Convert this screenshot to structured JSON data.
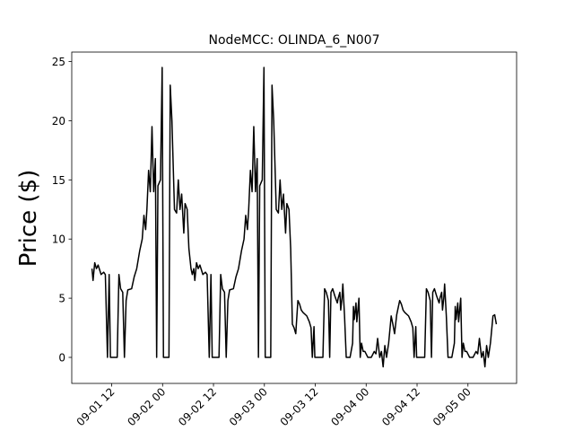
{
  "chart_data": {
    "type": "line",
    "title": "NodeMCC: OLINDA_6_N007",
    "y_label": "Price ($)",
    "xlim": [
      2.58,
      107.47
    ],
    "ylim": [
      -2.2,
      25.8
    ],
    "xticks": [
      {
        "value": 12,
        "label": "09-01 12"
      },
      {
        "value": 24,
        "label": "09-02 00"
      },
      {
        "value": 36,
        "label": "09-02 12"
      },
      {
        "value": 48,
        "label": "09-03 00"
      },
      {
        "value": 60,
        "label": "09-03 12"
      },
      {
        "value": 72,
        "label": "09-04 00"
      },
      {
        "value": 84,
        "label": "09-04 12"
      },
      {
        "value": 96,
        "label": "09-05 00"
      }
    ],
    "yticks": [
      0,
      5,
      10,
      15,
      20,
      25
    ],
    "grid": false,
    "x": [
      7.35,
      7.6,
      8.0,
      8.4,
      8.8,
      9.5,
      10.1,
      10.5,
      11.0,
      11.4,
      11.7,
      13.3,
      13.7,
      14.1,
      14.6,
      15.0,
      15.4,
      15.8,
      16.7,
      17.3,
      17.9,
      18.6,
      19.2,
      19.6,
      20.0,
      20.3,
      20.7,
      21.1,
      21.5,
      21.9,
      22.3,
      22.6,
      22.9,
      23.5,
      23.9,
      24.2,
      25.5,
      25.8,
      26.2,
      26.8,
      27.3,
      27.7,
      28.1,
      28.5,
      29.0,
      29.3,
      29.8,
      30.2,
      30.7,
      31.0,
      31.35,
      31.6,
      32.0,
      32.4,
      32.8,
      33.5,
      34.1,
      34.5,
      35.0,
      35.4,
      35.7,
      37.3,
      37.7,
      38.1,
      38.6,
      39.0,
      39.4,
      39.8,
      40.7,
      41.3,
      41.9,
      42.6,
      43.2,
      43.6,
      44.0,
      44.3,
      44.7,
      45.1,
      45.5,
      45.9,
      46.3,
      46.6,
      46.9,
      47.5,
      47.9,
      48.2,
      49.5,
      49.8,
      50.2,
      50.8,
      51.3,
      51.7,
      52.1,
      52.5,
      53.0,
      53.3,
      53.8,
      54.2,
      54.6,
      55.0,
      55.4,
      55.9,
      56.3,
      56.7,
      57.1,
      58.0,
      58.6,
      59.0,
      59.3,
      59.7,
      59.9,
      61.8,
      62.2,
      62.6,
      63.1,
      63.4,
      63.7,
      64.1,
      64.6,
      65.2,
      65.4,
      65.8,
      66.0,
      66.3,
      66.5,
      66.9,
      67.3,
      68.2,
      68.8,
      69.0,
      69.2,
      69.6,
      69.8,
      70.3,
      70.6,
      70.9,
      71.3,
      71.7,
      72.4,
      73.2,
      73.9,
      74.3,
      74.7,
      75.2,
      75.6,
      76.0,
      76.4,
      76.8,
      77.3,
      77.9,
      78.3,
      78.7,
      79.2,
      79.9,
      80.3,
      80.7,
      81.1,
      82.0,
      82.6,
      83.0,
      83.3,
      83.7,
      83.9,
      85.8,
      86.2,
      86.6,
      87.1,
      87.4,
      87.7,
      88.1,
      88.6,
      89.2,
      89.4,
      89.8,
      90.0,
      90.3,
      90.5,
      90.9,
      91.3,
      92.2,
      92.8,
      93.0,
      93.2,
      93.6,
      93.8,
      94.3,
      94.6,
      94.9,
      95.3,
      95.7,
      96.4,
      97.2,
      97.9,
      98.3,
      98.7,
      99.2,
      99.6,
      100.0,
      100.4,
      100.8,
      101.3,
      101.9,
      102.3,
      102.7
    ],
    "series": [
      {
        "name": "NodeMCC",
        "color": "#000000",
        "values": [
          7.5,
          6.5,
          8,
          7.5,
          7.8,
          7,
          7.2,
          7,
          0,
          7,
          0,
          0,
          7,
          5.8,
          5.5,
          0,
          4.8,
          5.7,
          5.8,
          6.8,
          7.5,
          9,
          10,
          12,
          10.8,
          12.5,
          15.8,
          14,
          19.5,
          14,
          16.8,
          0,
          14.5,
          15,
          24.5,
          0,
          0,
          23,
          20,
          12.5,
          12.2,
          15,
          12.5,
          13.8,
          10.5,
          13,
          12.5,
          9.2,
          7.5,
          7,
          7.5,
          6.5,
          8,
          7.5,
          7.8,
          7,
          7.2,
          7,
          0,
          7,
          0,
          0,
          7,
          5.8,
          5.5,
          0,
          4.8,
          5.7,
          5.8,
          6.8,
          7.5,
          9,
          10,
          12,
          10.8,
          12.5,
          15.8,
          14,
          19.5,
          14,
          16.8,
          0,
          14.5,
          15,
          24.5,
          0,
          0,
          23,
          20,
          12.5,
          12.2,
          15,
          12.5,
          13.8,
          10.5,
          13,
          12.5,
          9.2,
          2.8,
          2.5,
          2.0,
          4.8,
          4.5,
          4.0,
          3.8,
          3.5,
          3.0,
          2.5,
          0,
          2.6,
          0,
          0,
          5.8,
          5.5,
          4.8,
          0,
          5.5,
          5.8,
          5.2,
          4.6,
          5,
          5.5,
          4,
          5,
          6.2,
          3.5,
          0,
          0,
          1.2,
          4.3,
          3.2,
          4.6,
          3.0,
          5.0,
          0,
          1.2,
          0.5,
          0.5,
          0,
          0,
          0.5,
          0.3,
          1.6,
          0,
          0.5,
          -0.8,
          1.0,
          0,
          1.2,
          3.5,
          2.8,
          2.0,
          3.6,
          4.8,
          4.5,
          4.0,
          3.8,
          3.5,
          3.0,
          2.5,
          0,
          2.6,
          0,
          0,
          5.8,
          5.5,
          4.8,
          0,
          5.5,
          5.8,
          5.2,
          4.6,
          5,
          5.5,
          4,
          5,
          6.2,
          3.5,
          0,
          0,
          1.2,
          4.3,
          3.2,
          4.6,
          3.0,
          5.0,
          0,
          1.2,
          0.5,
          0.5,
          0,
          0,
          0.5,
          0.3,
          1.6,
          0,
          0.5,
          -0.8,
          1.0,
          0,
          1.2,
          3.5,
          3.6,
          2.8
        ]
      }
    ]
  }
}
